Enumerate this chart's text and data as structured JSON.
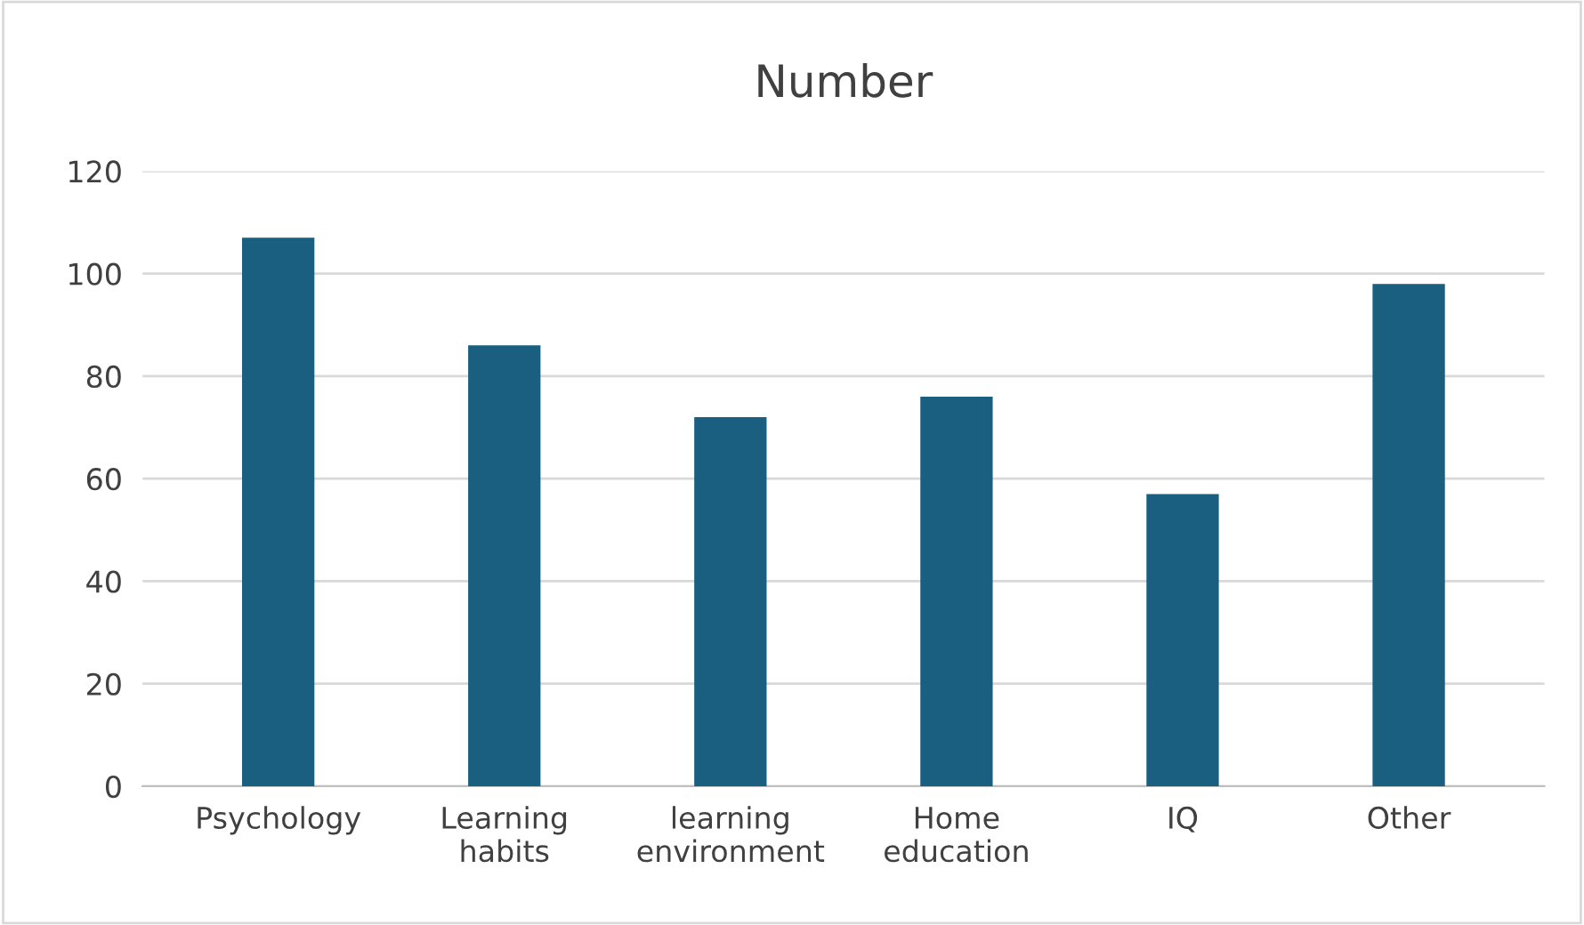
{
  "chart_data": {
    "type": "bar",
    "title": "Number",
    "categories": [
      "Psychology",
      "Learning\nhabits",
      "learning\nenvironment",
      "Home\neducation",
      "IQ",
      "Other"
    ],
    "values": [
      107,
      86,
      72,
      76,
      57,
      98
    ],
    "color": "#1a5f80",
    "ylim": [
      0,
      120
    ],
    "yticks": [
      0,
      20,
      40,
      60,
      80,
      100,
      120
    ],
    "grid": "y",
    "legend": false
  }
}
